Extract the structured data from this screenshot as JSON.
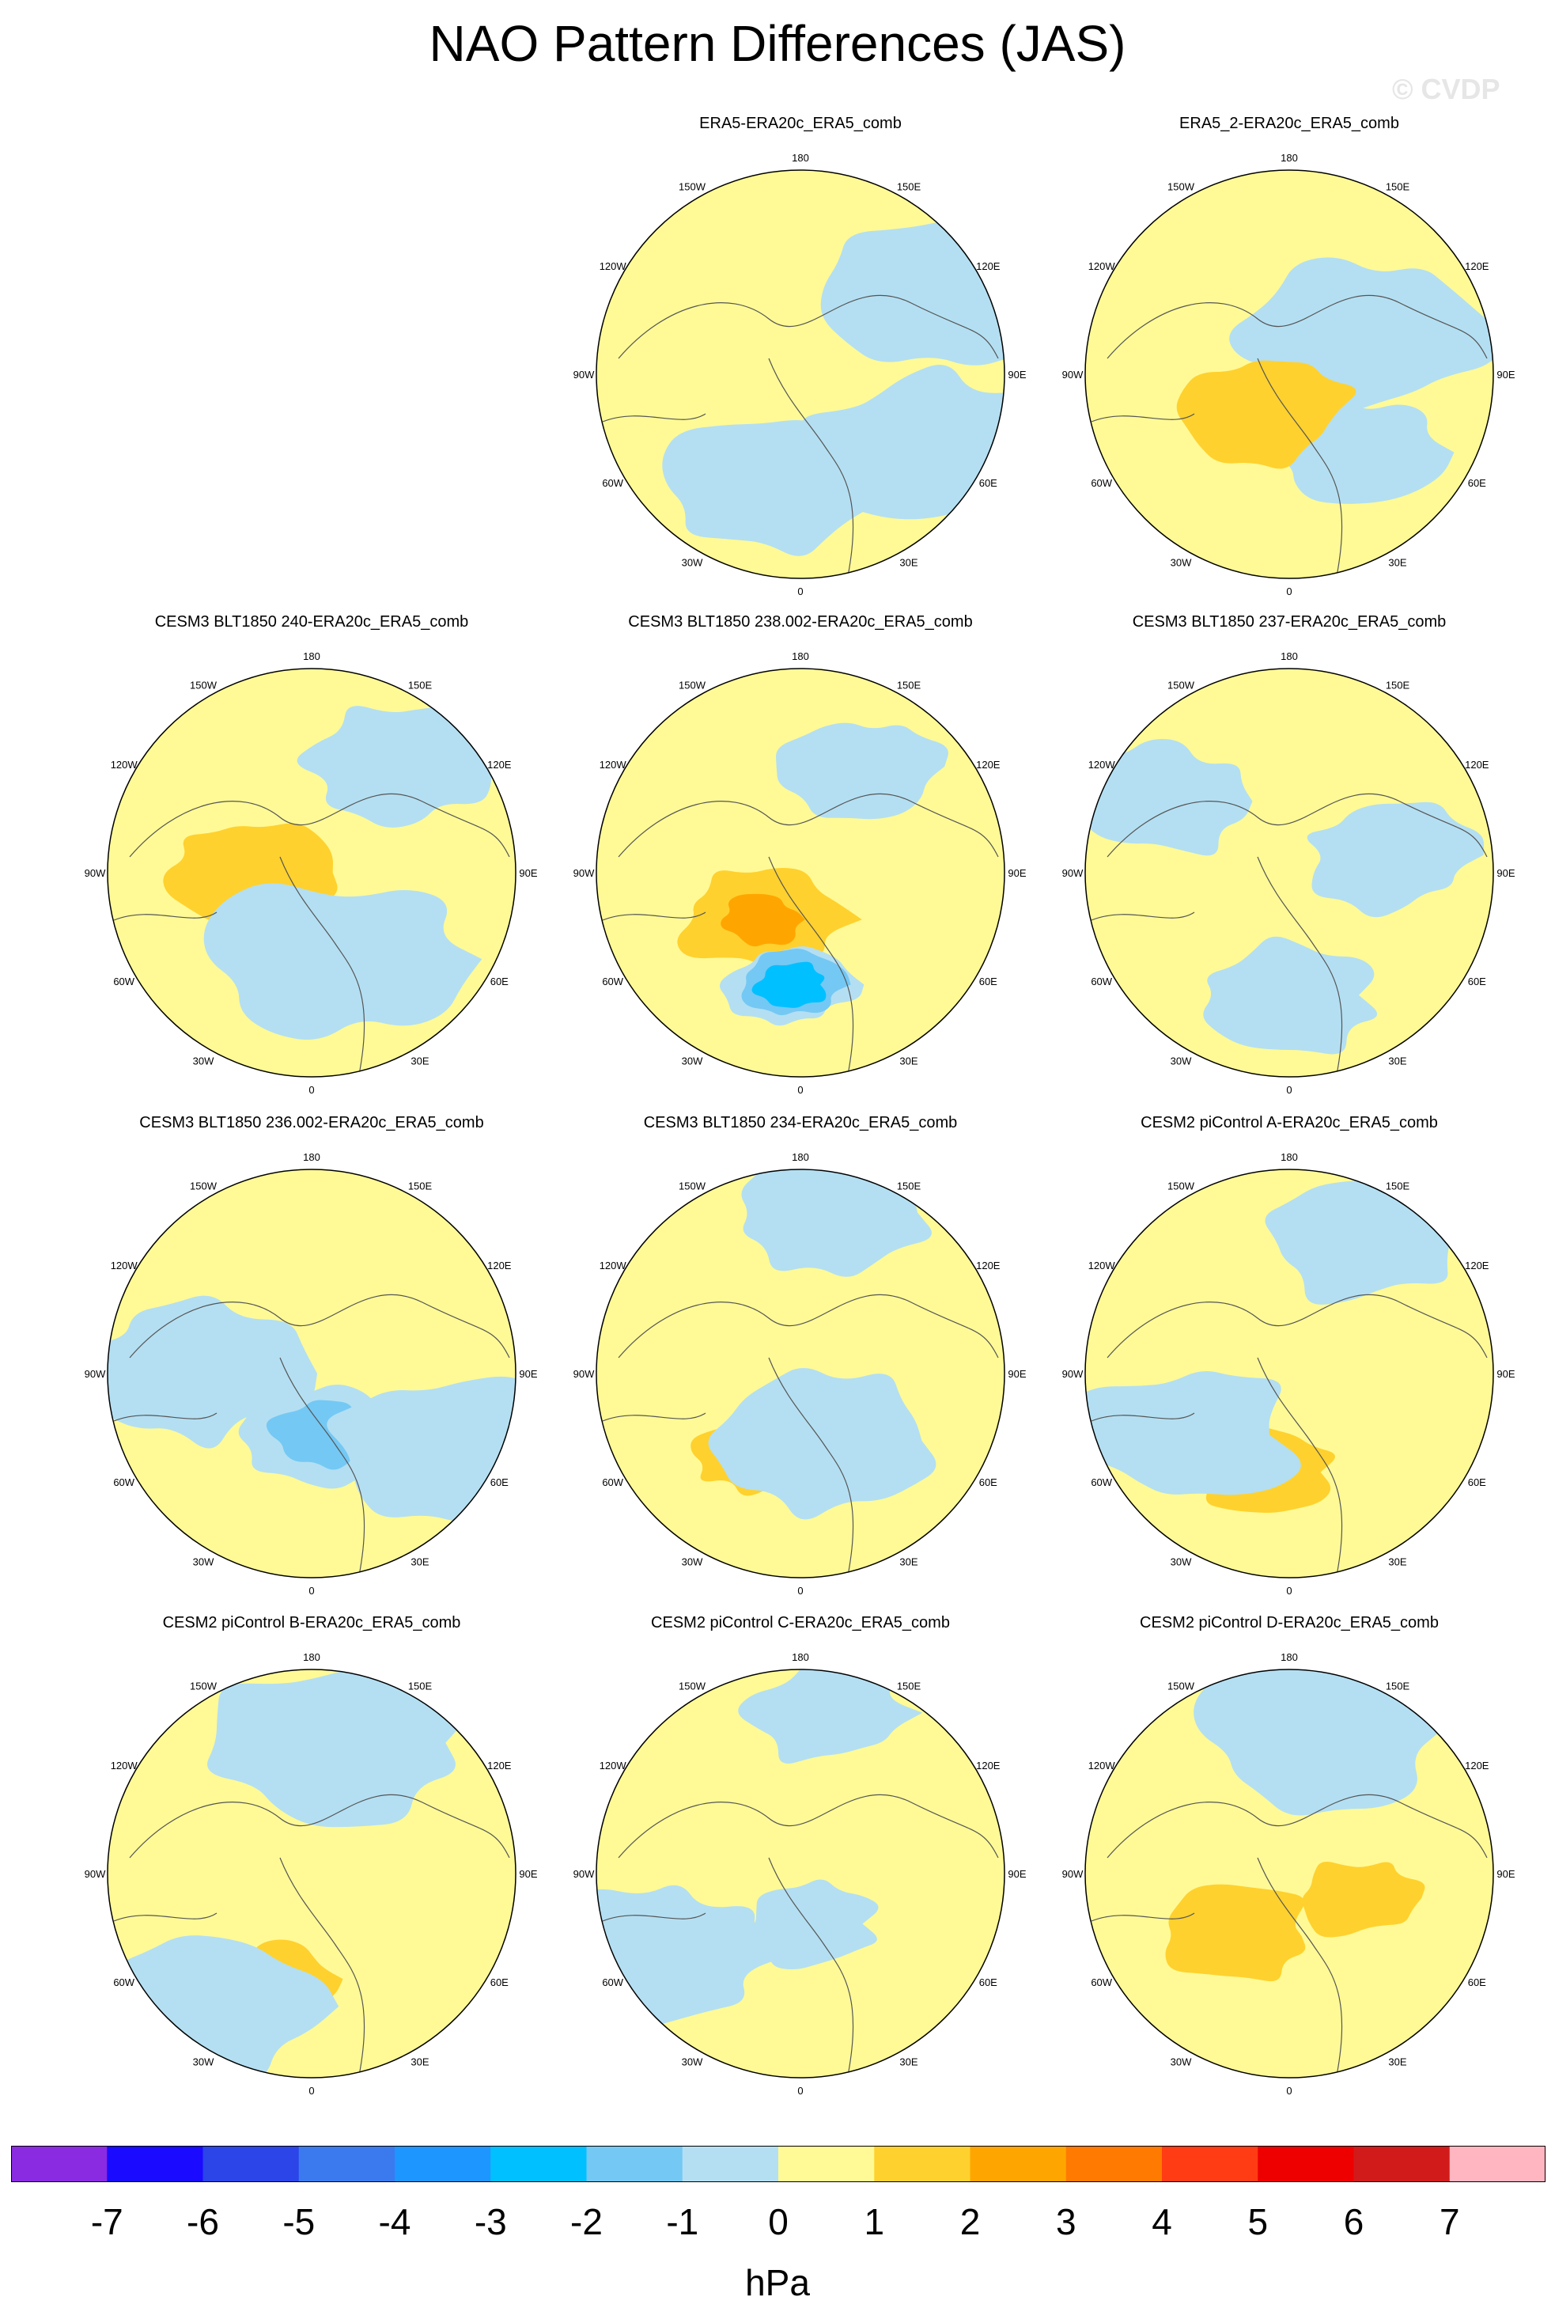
{
  "title": "NAO Pattern Differences (JAS)",
  "watermark": "© CVDP",
  "longitude_labels": [
    "180",
    "150E",
    "120E",
    "90E",
    "60E",
    "30E",
    "0",
    "30W",
    "60W",
    "90W",
    "120W",
    "150W"
  ],
  "panels": [
    {
      "title": "ERA5-ERA20c_ERA5_comb",
      "row": 0,
      "col": 1,
      "seed": 11,
      "features": [
        {
          "lon": -10,
          "r": 0.55,
          "val": -0.5
        },
        {
          "lon": 60,
          "r": 0.7,
          "val": -0.5
        },
        {
          "lon": 120,
          "r": 0.85,
          "val": -0.5
        }
      ]
    },
    {
      "title": "ERA5_2-ERA20c_ERA5_comb",
      "row": 0,
      "col": 2,
      "seed": 23,
      "features": [
        {
          "lon": 40,
          "r": 0.5,
          "val": -0.5
        },
        {
          "lon": 120,
          "r": 0.4,
          "val": -0.5
        },
        {
          "lon": -30,
          "r": 0.2,
          "val": 1.2
        }
      ]
    },
    {
      "title": "CESM3 BLT1850 240-ERA20c_ERA5_comb",
      "row": 1,
      "col": 0,
      "seed": 37,
      "features": [
        {
          "lon": -90,
          "r": 0.3,
          "val": 1.5
        },
        {
          "lon": 20,
          "r": 0.45,
          "val": -0.5
        },
        {
          "lon": 140,
          "r": 0.7,
          "val": -0.5
        }
      ]
    },
    {
      "title": "CESM3 BLT1850 238.002-ERA20c_ERA5_comb",
      "row": 1,
      "col": 1,
      "seed": 41,
      "features": [
        {
          "lon": -40,
          "r": 0.3,
          "val": 2.6
        },
        {
          "lon": -5,
          "r": 0.55,
          "val": -2.8
        },
        {
          "lon": 150,
          "r": 0.6,
          "val": -0.5
        }
      ]
    },
    {
      "title": "CESM3 BLT1850 237-ERA20c_ERA5_comb",
      "row": 1,
      "col": 2,
      "seed": 53,
      "features": [
        {
          "lon": 0,
          "r": 0.6,
          "val": -0.5
        },
        {
          "lon": -120,
          "r": 0.7,
          "val": -0.5
        },
        {
          "lon": 100,
          "r": 0.5,
          "val": -0.5
        }
      ]
    },
    {
      "title": "CESM3 BLT1850 236.002-ERA20c_ERA5_comb",
      "row": 2,
      "col": 0,
      "seed": 61,
      "features": [
        {
          "lon": 10,
          "r": 0.3,
          "val": -2.1
        },
        {
          "lon": -90,
          "r": 0.6,
          "val": -0.5
        },
        {
          "lon": 60,
          "r": 0.75,
          "val": -0.5
        }
      ]
    },
    {
      "title": "CESM3 BLT1850 234-ERA20c_ERA5_comb",
      "row": 2,
      "col": 1,
      "seed": 71,
      "features": [
        {
          "lon": -30,
          "r": 0.45,
          "val": 1.4
        },
        {
          "lon": 20,
          "r": 0.35,
          "val": -0.5
        },
        {
          "lon": 170,
          "r": 0.8,
          "val": -0.5
        }
      ]
    },
    {
      "title": "CESM2 piControl A-ERA20c_ERA5_comb",
      "row": 2,
      "col": 2,
      "seed": 83,
      "features": [
        {
          "lon": -15,
          "r": 0.5,
          "val": 1.8
        },
        {
          "lon": -60,
          "r": 0.6,
          "val": -0.5
        },
        {
          "lon": 150,
          "r": 0.75,
          "val": -0.5
        }
      ]
    },
    {
      "title": "CESM2 piControl B-ERA20c_ERA5_comb",
      "row": 3,
      "col": 0,
      "seed": 97,
      "features": [
        {
          "lon": -20,
          "r": 0.55,
          "val": 1.7
        },
        {
          "lon": -40,
          "r": 0.85,
          "val": -0.5
        },
        {
          "lon": 170,
          "r": 0.65,
          "val": -0.5
        }
      ]
    },
    {
      "title": "CESM2 piControl C-ERA20c_ERA5_comb",
      "row": 3,
      "col": 1,
      "seed": 101,
      "features": [
        {
          "lon": 10,
          "r": 0.25,
          "val": -1.3
        },
        {
          "lon": 170,
          "r": 0.8,
          "val": -0.5
        },
        {
          "lon": -60,
          "r": 0.8,
          "val": -0.5
        }
      ]
    },
    {
      "title": "CESM2 piControl D-ERA20c_ERA5_comb",
      "row": 3,
      "col": 2,
      "seed": 113,
      "features": [
        {
          "lon": -40,
          "r": 0.4,
          "val": 1.8
        },
        {
          "lon": 70,
          "r": 0.35,
          "val": 1.3
        },
        {
          "lon": 170,
          "r": 0.7,
          "val": -0.5
        }
      ]
    }
  ],
  "colorbar": {
    "labels": [
      "-7",
      "-6",
      "-5",
      "-4",
      "-3",
      "-2",
      "-1",
      "0",
      "1",
      "2",
      "3",
      "4",
      "5",
      "6",
      "7"
    ],
    "colors": [
      "#8a2be2",
      "#1a0aff",
      "#2b45e8",
      "#3a7aee",
      "#1e96ff",
      "#00c0ff",
      "#74c8f4",
      "#b4dff2",
      "#fffa96",
      "#ffd12e",
      "#ffa500",
      "#ff7a00",
      "#ff3c14",
      "#ee0000",
      "#d11b1b",
      "#ffb6c1"
    ],
    "units": "hPa"
  }
}
